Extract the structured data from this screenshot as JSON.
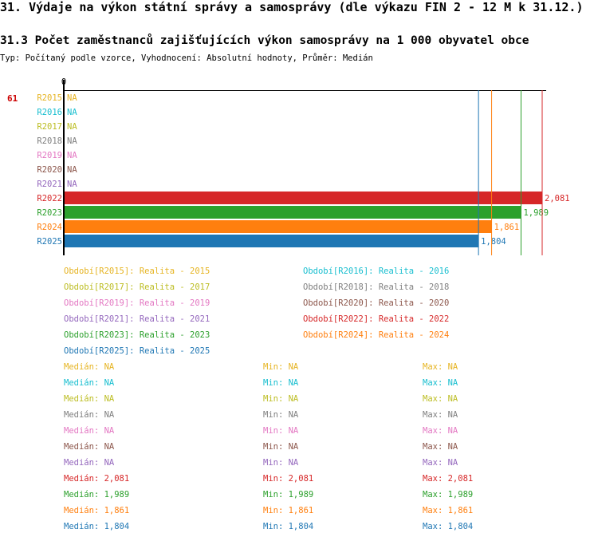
{
  "header": {
    "title": "31. Výdaje na výkon státní správy a samosprávy (dle výkazu FIN 2 - 12 M k 31.12.)",
    "subtitle": "31.3 Počet zaměstnanců zajišťujících výkon samosprávy na 1 000 obyvatel obce",
    "info": "Typ: Počítaný podle vzorce, Vyhodnocení: Absolutní hodnoty, Průměr: Medián"
  },
  "chart_data": {
    "type": "bar",
    "orientation": "horizontal",
    "id_label": "61",
    "axis_zero_label": "0",
    "xlim": [
      0,
      2081
    ],
    "na_label": "NA",
    "categories": [
      "R2015",
      "R2016",
      "R2017",
      "R2018",
      "R2019",
      "R2020",
      "R2021",
      "R2022",
      "R2023",
      "R2024",
      "R2025"
    ],
    "values": [
      null,
      null,
      null,
      null,
      null,
      null,
      null,
      2081,
      1989,
      1861,
      1804
    ],
    "value_labels": [
      "NA",
      "NA",
      "NA",
      "NA",
      "NA",
      "NA",
      "NA",
      "2,081",
      "1,989",
      "1,861",
      "1,804"
    ],
    "colors": [
      "#e6b422",
      "#17becf",
      "#bcbd22",
      "#7f7f7f",
      "#e377c2",
      "#8c564b",
      "#9467bd",
      "#d62728",
      "#2ca02c",
      "#ff7f0e",
      "#1f77b4"
    ],
    "reference_lines": [
      {
        "value": 1804,
        "color": "#1f77b4"
      },
      {
        "value": 1861,
        "color": "#ff7f0e"
      },
      {
        "value": 1989,
        "color": "#2ca02c"
      },
      {
        "value": 2081,
        "color": "#d62728"
      }
    ]
  },
  "legend": [
    {
      "text": "Období[R2015]: Realita - 2015",
      "color": "#e6b422"
    },
    {
      "text": "Období[R2016]: Realita - 2016",
      "color": "#17becf"
    },
    {
      "text": "Období[R2017]: Realita - 2017",
      "color": "#bcbd22"
    },
    {
      "text": "Období[R2018]: Realita - 2018",
      "color": "#7f7f7f"
    },
    {
      "text": "Období[R2019]: Realita - 2019",
      "color": "#e377c2"
    },
    {
      "text": "Období[R2020]: Realita - 2020",
      "color": "#8c564b"
    },
    {
      "text": "Období[R2021]: Realita - 2021",
      "color": "#9467bd"
    },
    {
      "text": "Období[R2022]: Realita - 2022",
      "color": "#d62728"
    },
    {
      "text": "Období[R2023]: Realita - 2023",
      "color": "#2ca02c"
    },
    {
      "text": "Období[R2024]: Realita - 2024",
      "color": "#ff7f0e"
    },
    {
      "text": "Období[R2025]: Realita - 2025",
      "color": "#1f77b4"
    }
  ],
  "stats": [
    {
      "median": "Medián: NA",
      "min": "Min: NA",
      "max": "Max: NA",
      "color": "#e6b422"
    },
    {
      "median": "Medián: NA",
      "min": "Min: NA",
      "max": "Max: NA",
      "color": "#17becf"
    },
    {
      "median": "Medián: NA",
      "min": "Min: NA",
      "max": "Max: NA",
      "color": "#bcbd22"
    },
    {
      "median": "Medián: NA",
      "min": "Min: NA",
      "max": "Max: NA",
      "color": "#7f7f7f"
    },
    {
      "median": "Medián: NA",
      "min": "Min: NA",
      "max": "Max: NA",
      "color": "#e377c2"
    },
    {
      "median": "Medián: NA",
      "min": "Min: NA",
      "max": "Max: NA",
      "color": "#8c564b"
    },
    {
      "median": "Medián: NA",
      "min": "Min: NA",
      "max": "Max: NA",
      "color": "#9467bd"
    },
    {
      "median": "Medián: 2,081",
      "min": "Min: 2,081",
      "max": "Max: 2,081",
      "color": "#d62728"
    },
    {
      "median": "Medián: 1,989",
      "min": "Min: 1,989",
      "max": "Max: 1,989",
      "color": "#2ca02c"
    },
    {
      "median": "Medián: 1,861",
      "min": "Min: 1,861",
      "max": "Max: 1,861",
      "color": "#ff7f0e"
    },
    {
      "median": "Medián: 1,804",
      "min": "Min: 1,804",
      "max": "Max: 1,804",
      "color": "#1f77b4"
    }
  ]
}
